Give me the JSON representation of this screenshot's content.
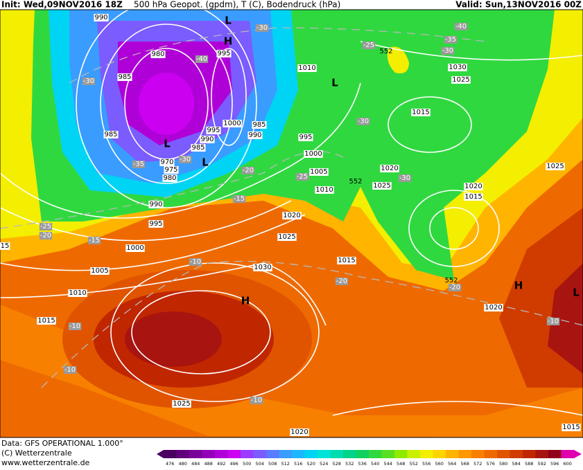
{
  "header": {
    "init": "Init: Wed,09NOV2016 18Z",
    "title": "500 hPa Geopot. (gpdm), T (C), Bodendruck (hPa)",
    "valid": "Valid: Sun,13NOV2016 00Z"
  },
  "footer": {
    "data": "Data: GFS OPERATIONAL 1.000°",
    "copyright": "(C) Wetterzentrale",
    "url": "www.wetterzentrale.de"
  },
  "colorbar": {
    "levels": [
      476,
      480,
      484,
      488,
      492,
      496,
      500,
      504,
      508,
      512,
      516,
      520,
      524,
      528,
      532,
      536,
      540,
      544,
      548,
      552,
      556,
      560,
      564,
      568,
      572,
      576,
      580,
      584,
      588,
      592,
      596,
      600
    ],
    "colors": [
      "#4a0060",
      "#62007c",
      "#7a009a",
      "#9400b8",
      "#b000d8",
      "#cc00f0",
      "#9a3cff",
      "#7a5cff",
      "#5a7cff",
      "#3a9cff",
      "#1cb8ff",
      "#00d4f4",
      "#00e4d8",
      "#00dcb0",
      "#00d488",
      "#10d060",
      "#30d840",
      "#58e020",
      "#90ea00",
      "#c8f000",
      "#f4ee00",
      "#ffd400",
      "#ffb400",
      "#ff9800",
      "#f88000",
      "#ee6a00",
      "#e05400",
      "#d03c00",
      "#c02600",
      "#a81410",
      "#900018",
      "#e000b0"
    ]
  },
  "map": {
    "isobar_labels": [
      "990",
      "980",
      "985",
      "985",
      "995",
      "1000",
      "995",
      "990",
      "985",
      "970",
      "975",
      "980",
      "985",
      "990",
      "995",
      "1000",
      "1005",
      "1010",
      "990",
      "995",
      "1000",
      "1005",
      "1010",
      "1015",
      "1030",
      "1025",
      "1020",
      "1015",
      "1025",
      "1020",
      "1020",
      "1025",
      "1015",
      "1010",
      "1030",
      "1025",
      "1020",
      "1015",
      "1025",
      "1020",
      "1015",
      "15"
    ],
    "temperature_labels": [
      "-30",
      "-40",
      "-35",
      "-30",
      "-25",
      "-40",
      "-30",
      "-35",
      "-30",
      "-20",
      "-25",
      "-15",
      "-25",
      "-20",
      "-15",
      "-10",
      "-20",
      "-10",
      "-10",
      "-10",
      "-10",
      "-30",
      "-20",
      "-30"
    ],
    "height_labels": [
      "552",
      "552",
      "552"
    ],
    "centers": [
      "L",
      "H",
      "L",
      "L",
      "L",
      "H",
      "H",
      "L"
    ]
  }
}
